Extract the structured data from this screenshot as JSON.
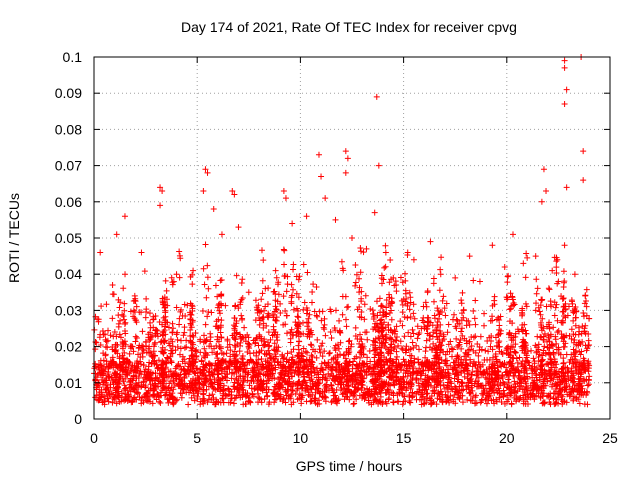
{
  "chart_data": {
    "type": "scatter",
    "title": "Day 174 of 2021, Rate Of TEC Index for receiver cpvg",
    "xlabel": "GPS time / hours",
    "ylabel": "ROTI / TECUs",
    "xlim": [
      0,
      25
    ],
    "ylim": [
      0,
      0.1
    ],
    "x_ticks": [
      "0",
      "5",
      "10",
      "15",
      "20",
      "25"
    ],
    "y_ticks": [
      "0",
      "0.01",
      "0.02",
      "0.03",
      "0.04",
      "0.05",
      "0.06",
      "0.07",
      "0.08",
      "0.09",
      "0.1"
    ],
    "x_tick_values": [
      0,
      5,
      10,
      15,
      20,
      25
    ],
    "y_tick_values": [
      0,
      0.01,
      0.02,
      0.03,
      0.04,
      0.05,
      0.06,
      0.07,
      0.08,
      0.09,
      0.1
    ],
    "grid": true,
    "marker": "+",
    "series_color": "#ff0000",
    "x_data_range": [
      0,
      24
    ],
    "points": [
      [
        0.3,
        0.046
      ],
      [
        0.9,
        0.037
      ],
      [
        1.1,
        0.051
      ],
      [
        1.5,
        0.056
      ],
      [
        2.3,
        0.046
      ],
      [
        3.2,
        0.064
      ],
      [
        3.3,
        0.063
      ],
      [
        3.2,
        0.059
      ],
      [
        4.0,
        0.04
      ],
      [
        4.8,
        0.041
      ],
      [
        5.4,
        0.069
      ],
      [
        5.5,
        0.068
      ],
      [
        5.3,
        0.063
      ],
      [
        5.8,
        0.058
      ],
      [
        6.2,
        0.051
      ],
      [
        6.7,
        0.063
      ],
      [
        6.8,
        0.062
      ],
      [
        7.0,
        0.053
      ],
      [
        7.5,
        0.035
      ],
      [
        8.3,
        0.036
      ],
      [
        8.8,
        0.041
      ],
      [
        9.2,
        0.063
      ],
      [
        9.3,
        0.061
      ],
      [
        9.6,
        0.054
      ],
      [
        10.3,
        0.056
      ],
      [
        10.9,
        0.073
      ],
      [
        11.0,
        0.067
      ],
      [
        11.2,
        0.061
      ],
      [
        11.7,
        0.055
      ],
      [
        12.2,
        0.074
      ],
      [
        12.3,
        0.072
      ],
      [
        12.2,
        0.068
      ],
      [
        12.5,
        0.05
      ],
      [
        13.2,
        0.047
      ],
      [
        13.7,
        0.089
      ],
      [
        13.8,
        0.07
      ],
      [
        13.6,
        0.057
      ],
      [
        14.5,
        0.039
      ],
      [
        15.2,
        0.046
      ],
      [
        15.5,
        0.044
      ],
      [
        16.3,
        0.049
      ],
      [
        16.8,
        0.04
      ],
      [
        17.5,
        0.039
      ],
      [
        18.2,
        0.045
      ],
      [
        18.7,
        0.038
      ],
      [
        19.3,
        0.048
      ],
      [
        19.9,
        0.042
      ],
      [
        20.3,
        0.051
      ],
      [
        20.8,
        0.043
      ],
      [
        21.4,
        0.045
      ],
      [
        21.8,
        0.069
      ],
      [
        21.9,
        0.063
      ],
      [
        21.7,
        0.06
      ],
      [
        22.2,
        0.041
      ],
      [
        22.5,
        0.038
      ],
      [
        22.8,
        0.099
      ],
      [
        22.8,
        0.097
      ],
      [
        22.9,
        0.091
      ],
      [
        22.8,
        0.087
      ],
      [
        22.9,
        0.064
      ],
      [
        22.8,
        0.048
      ],
      [
        23.3,
        0.04
      ],
      [
        23.6,
        0.1
      ],
      [
        23.7,
        0.074
      ],
      [
        23.7,
        0.066
      ],
      [
        23.8,
        0.034
      ]
    ]
  }
}
